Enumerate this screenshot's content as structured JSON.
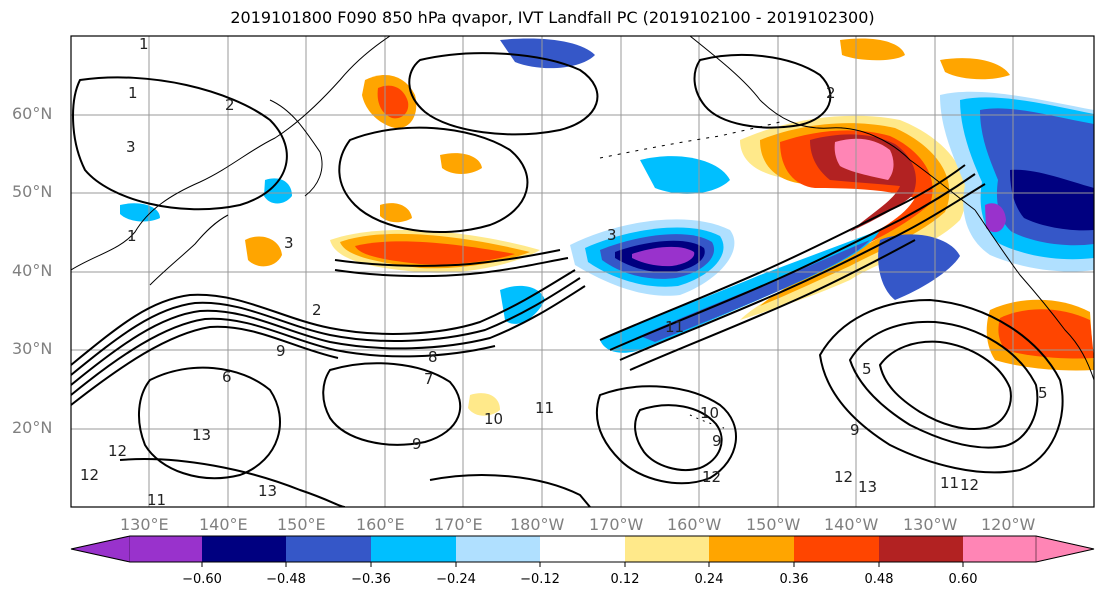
{
  "title": "2019101800 F090 850 hPa qvapor, IVT Landfall PC (2019102100 - 2019102300)",
  "map": {
    "lat_labels": [
      "60°N",
      "50°N",
      "40°N",
      "30°N",
      "20°N"
    ],
    "lon_labels": [
      "130°E",
      "140°E",
      "150°E",
      "160°E",
      "170°E",
      "180°W",
      "170°W",
      "160°W",
      "150°W",
      "140°W",
      "130°W",
      "120°W"
    ],
    "gridlines": true,
    "contour_labels": [
      "1",
      "2",
      "3",
      "1",
      "1",
      "2",
      "3",
      "3",
      "2",
      "5",
      "6",
      "9",
      "8",
      "7",
      "10",
      "11",
      "9",
      "13",
      "12",
      "11",
      "13",
      "12",
      "10",
      "9",
      "11",
      "5",
      "9",
      "12",
      "11",
      "12",
      "12",
      "13"
    ]
  },
  "colorbar": {
    "ticks": [
      "−0.60",
      "−0.48",
      "−0.36",
      "−0.24",
      "−0.12",
      "0.12",
      "0.24",
      "0.36",
      "0.48",
      "0.60"
    ],
    "colors": [
      "#9932cc",
      "#000080",
      "#3557c8",
      "#00bfff",
      "#b0e0ff",
      "#ffffff",
      "#ffe98a",
      "#ffa500",
      "#ff4500",
      "#b22222",
      "#ff85b5"
    ]
  }
}
